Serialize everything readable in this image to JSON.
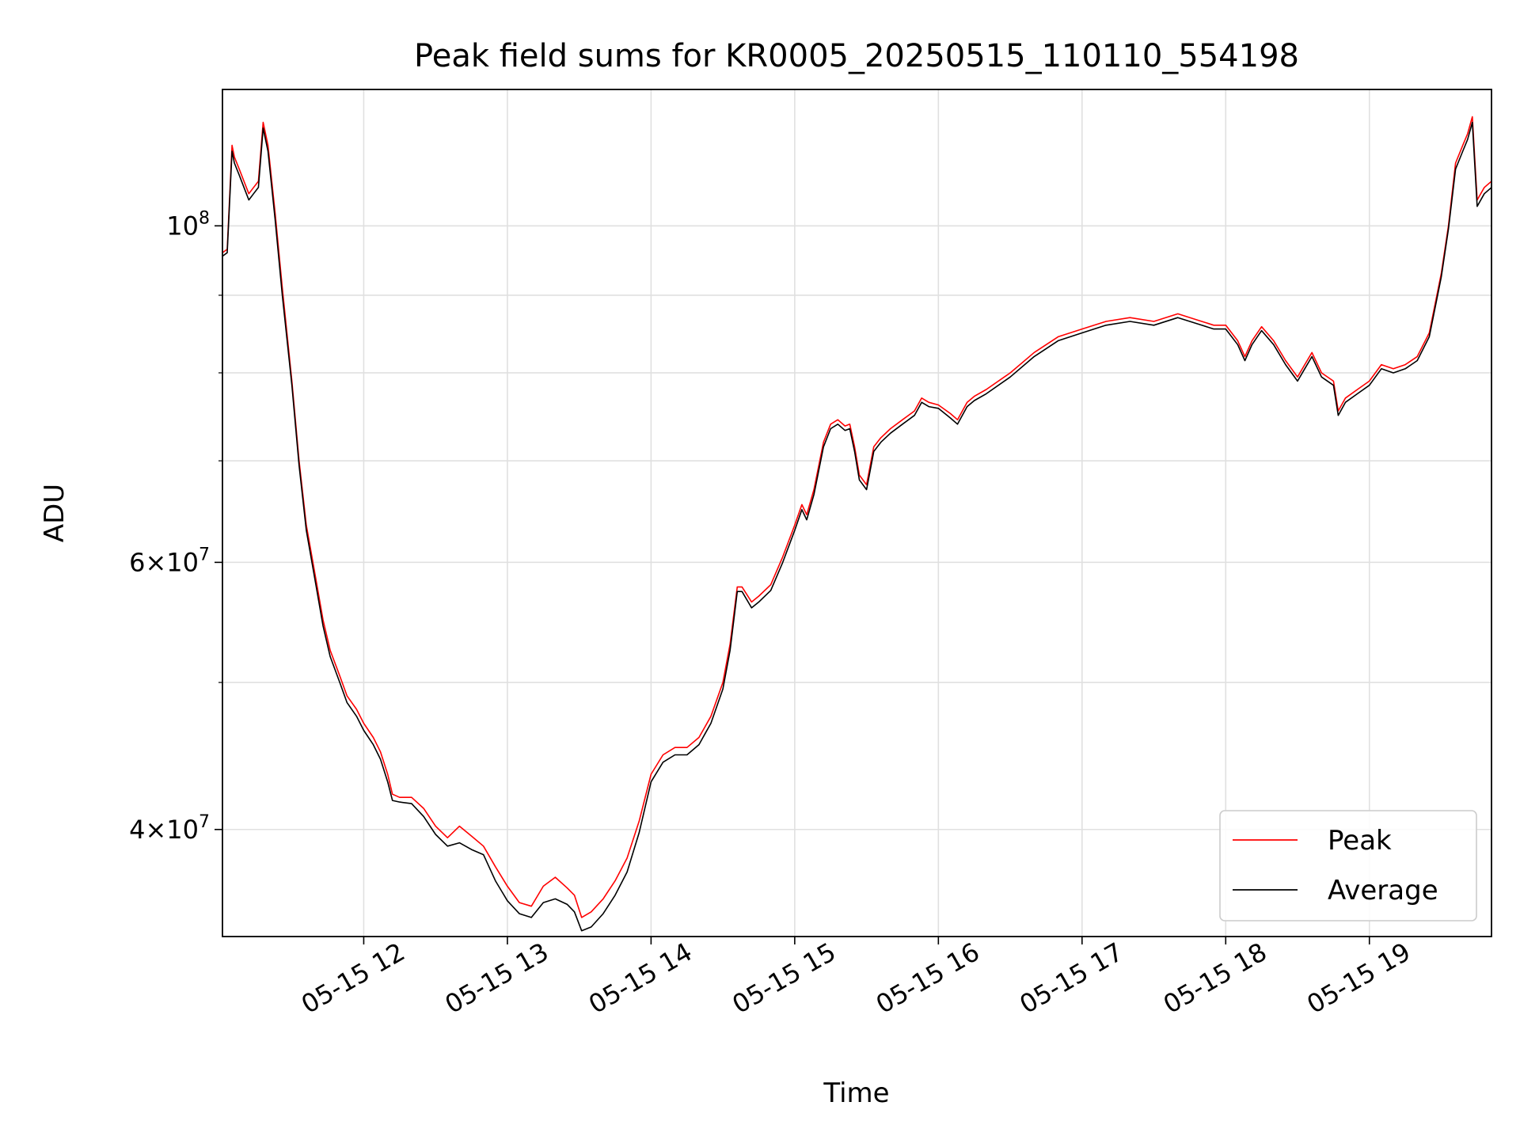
{
  "chart_data": {
    "type": "line",
    "title": "Peak field sums for KR0005_20250515_110110_554198",
    "xlabel": "Time",
    "ylabel": "ADU",
    "yscale": "log",
    "ylim": [
      34000000,
      123000000
    ],
    "xlim": [
      "2025-05-15 11:01",
      "2025-05-15 19:51"
    ],
    "grid": true,
    "legend_position": "lower-right",
    "x_ticks": [
      {
        "value": "2025-05-15 12:00",
        "label": "05-15 12"
      },
      {
        "value": "2025-05-15 13:00",
        "label": "05-15 13"
      },
      {
        "value": "2025-05-15 14:00",
        "label": "05-15 14"
      },
      {
        "value": "2025-05-15 15:00",
        "label": "05-15 15"
      },
      {
        "value": "2025-05-15 16:00",
        "label": "05-15 16"
      },
      {
        "value": "2025-05-15 17:00",
        "label": "05-15 17"
      },
      {
        "value": "2025-05-15 18:00",
        "label": "05-15 18"
      },
      {
        "value": "2025-05-15 19:00",
        "label": "05-15 19"
      }
    ],
    "y_major_ticks": [
      {
        "value": 40000000,
        "mantissa": "4",
        "exponent": "7"
      },
      {
        "value": 60000000,
        "mantissa": "6",
        "exponent": "7"
      },
      {
        "value": 100000000,
        "mantissa": "",
        "exponent": "8"
      }
    ],
    "y_minor_ticks": [
      50000000,
      70000000,
      80000000,
      90000000
    ],
    "times": [
      "2025-05-15 11:01",
      "2025-05-15 11:03",
      "2025-05-15 11:05",
      "2025-05-15 11:06",
      "2025-05-15 11:08",
      "2025-05-15 11:10",
      "2025-05-15 11:12",
      "2025-05-15 11:14",
      "2025-05-15 11:16",
      "2025-05-15 11:18",
      "2025-05-15 11:20",
      "2025-05-15 11:23",
      "2025-05-15 11:26",
      "2025-05-15 11:30",
      "2025-05-15 11:33",
      "2025-05-15 11:36",
      "2025-05-15 11:40",
      "2025-05-15 11:43",
      "2025-05-15 11:46",
      "2025-05-15 11:50",
      "2025-05-15 11:53",
      "2025-05-15 11:57",
      "2025-05-15 12:00",
      "2025-05-15 12:04",
      "2025-05-15 12:07",
      "2025-05-15 12:10",
      "2025-05-15 12:12",
      "2025-05-15 12:15",
      "2025-05-15 12:20",
      "2025-05-15 12:25",
      "2025-05-15 12:30",
      "2025-05-15 12:35",
      "2025-05-15 12:40",
      "2025-05-15 12:45",
      "2025-05-15 12:50",
      "2025-05-15 12:55",
      "2025-05-15 13:00",
      "2025-05-15 13:05",
      "2025-05-15 13:10",
      "2025-05-15 13:15",
      "2025-05-15 13:20",
      "2025-05-15 13:25",
      "2025-05-15 13:28",
      "2025-05-15 13:31",
      "2025-05-15 13:35",
      "2025-05-15 13:40",
      "2025-05-15 13:45",
      "2025-05-15 13:50",
      "2025-05-15 13:55",
      "2025-05-15 14:00",
      "2025-05-15 14:05",
      "2025-05-15 14:10",
      "2025-05-15 14:15",
      "2025-05-15 14:20",
      "2025-05-15 14:25",
      "2025-05-15 14:30",
      "2025-05-15 14:33",
      "2025-05-15 14:36",
      "2025-05-15 14:38",
      "2025-05-15 14:42",
      "2025-05-15 14:45",
      "2025-05-15 14:50",
      "2025-05-15 14:55",
      "2025-05-15 15:00",
      "2025-05-15 15:03",
      "2025-05-15 15:05",
      "2025-05-15 15:08",
      "2025-05-15 15:12",
      "2025-05-15 15:15",
      "2025-05-15 15:18",
      "2025-05-15 15:21",
      "2025-05-15 15:23",
      "2025-05-15 15:25",
      "2025-05-15 15:27",
      "2025-05-15 15:30",
      "2025-05-15 15:33",
      "2025-05-15 15:36",
      "2025-05-15 15:40",
      "2025-05-15 15:45",
      "2025-05-15 15:50",
      "2025-05-15 15:53",
      "2025-05-15 15:56",
      "2025-05-15 16:00",
      "2025-05-15 16:05",
      "2025-05-15 16:08",
      "2025-05-15 16:12",
      "2025-05-15 16:15",
      "2025-05-15 16:20",
      "2025-05-15 16:30",
      "2025-05-15 16:40",
      "2025-05-15 16:50",
      "2025-05-15 17:00",
      "2025-05-15 17:10",
      "2025-05-15 17:20",
      "2025-05-15 17:30",
      "2025-05-15 17:40",
      "2025-05-15 17:50",
      "2025-05-15 17:55",
      "2025-05-15 18:00",
      "2025-05-15 18:05",
      "2025-05-15 18:08",
      "2025-05-15 18:11",
      "2025-05-15 18:15",
      "2025-05-15 18:20",
      "2025-05-15 18:25",
      "2025-05-15 18:30",
      "2025-05-15 18:33",
      "2025-05-15 18:36",
      "2025-05-15 18:40",
      "2025-05-15 18:45",
      "2025-05-15 18:47",
      "2025-05-15 18:50",
      "2025-05-15 18:55",
      "2025-05-15 19:00",
      "2025-05-15 19:05",
      "2025-05-15 19:10",
      "2025-05-15 19:15",
      "2025-05-15 19:20",
      "2025-05-15 19:25",
      "2025-05-15 19:30",
      "2025-05-15 19:33",
      "2025-05-15 19:36",
      "2025-05-15 19:39",
      "2025-05-15 19:41",
      "2025-05-15 19:43",
      "2025-05-15 19:45",
      "2025-05-15 19:48",
      "2025-05-15 19:51"
    ],
    "series": [
      {
        "name": "Peak",
        "color": "#ff0000",
        "values": [
          96000000,
          96500000,
          113000000,
          111000000,
          109000000,
          107000000,
          105000000,
          106000000,
          107000000,
          117000000,
          113000000,
          102000000,
          91000000,
          79000000,
          70000000,
          63500000,
          58500000,
          55000000,
          52500000,
          50500000,
          49000000,
          48000000,
          47000000,
          46000000,
          45000000,
          43500000,
          42200000,
          42000000,
          42000000,
          41300000,
          40200000,
          39500000,
          40200000,
          39600000,
          39000000,
          37800000,
          36700000,
          35800000,
          35600000,
          36700000,
          37200000,
          36600000,
          36200000,
          35000000,
          35300000,
          36000000,
          37000000,
          38300000,
          40500000,
          43500000,
          44800000,
          45300000,
          45300000,
          46000000,
          47500000,
          50000000,
          53000000,
          57800000,
          57800000,
          56500000,
          57000000,
          58000000,
          60500000,
          63500000,
          65500000,
          64500000,
          67000000,
          72000000,
          74000000,
          74500000,
          73800000,
          74000000,
          71500000,
          68500000,
          67500000,
          71500000,
          72500000,
          73500000,
          74500000,
          75500000,
          77000000,
          76500000,
          76200000,
          75200000,
          74500000,
          76500000,
          77200000,
          78000000,
          80000000,
          82500000,
          84500000,
          85500000,
          86500000,
          87000000,
          86500000,
          87500000,
          86500000,
          86000000,
          86000000,
          84000000,
          82000000,
          84000000,
          85800000,
          84000000,
          81500000,
          79500000,
          81000000,
          82500000,
          80000000,
          79000000,
          75500000,
          77000000,
          78000000,
          79000000,
          81000000,
          80500000,
          81000000,
          82000000,
          85000000,
          93000000,
          100000000,
          110000000,
          113000000,
          115000000,
          118000000,
          104000000,
          106000000,
          107000000
        ]
      },
      {
        "name": "Average",
        "color": "#000000",
        "values": [
          95500000,
          96000000,
          112000000,
          110000000,
          108000000,
          106000000,
          104000000,
          105000000,
          106000000,
          116000000,
          112000000,
          101000000,
          90000000,
          78500000,
          69500000,
          63000000,
          58000000,
          54500000,
          52000000,
          50000000,
          48500000,
          47500000,
          46500000,
          45500000,
          44500000,
          43000000,
          41800000,
          41700000,
          41600000,
          40800000,
          39700000,
          39000000,
          39200000,
          38800000,
          38500000,
          37000000,
          35900000,
          35200000,
          35000000,
          35800000,
          36000000,
          35700000,
          35300000,
          34300000,
          34500000,
          35200000,
          36200000,
          37500000,
          39800000,
          43000000,
          44300000,
          44800000,
          44800000,
          45500000,
          47000000,
          49500000,
          52500000,
          57400000,
          57400000,
          56000000,
          56500000,
          57500000,
          60000000,
          63000000,
          65000000,
          64000000,
          66500000,
          71500000,
          73500000,
          74000000,
          73300000,
          73500000,
          71000000,
          68000000,
          67000000,
          71000000,
          72000000,
          73000000,
          74000000,
          75000000,
          76500000,
          76000000,
          75800000,
          74700000,
          74000000,
          76000000,
          76700000,
          77500000,
          79500000,
          82000000,
          84000000,
          85000000,
          86000000,
          86500000,
          86000000,
          87000000,
          86000000,
          85500000,
          85500000,
          83500000,
          81500000,
          83500000,
          85300000,
          83500000,
          81000000,
          79000000,
          80500000,
          82000000,
          79500000,
          78500000,
          75000000,
          76500000,
          77500000,
          78500000,
          80500000,
          80000000,
          80500000,
          81500000,
          84500000,
          92500000,
          99500000,
          109000000,
          112000000,
          114000000,
          117000000,
          103000000,
          105000000,
          106000000
        ]
      }
    ]
  }
}
